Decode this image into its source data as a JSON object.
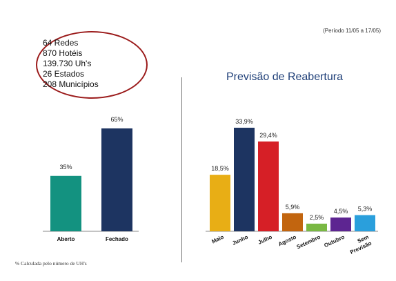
{
  "period_note": "(Período 11/05 a 17/05)",
  "stats": [
    "64 Redes",
    "870 Hotéis",
    "139.730 Uh's",
    "26 Estados",
    "208 Municípios"
  ],
  "footnote": "% Calculada pelo número de UH's",
  "chart_data": [
    {
      "type": "bar",
      "title": "",
      "categories": [
        "Aberto",
        "Fechado"
      ],
      "values": [
        35,
        65
      ],
      "value_labels": [
        "35%",
        "65%"
      ],
      "colors": [
        "#139280",
        "#1d3461"
      ],
      "ylim": [
        0,
        70
      ],
      "grid": false,
      "legend": "none"
    },
    {
      "type": "bar",
      "title": "Previsão de Reabertura",
      "categories": [
        "Maio",
        "Junho",
        "Julho",
        "Agosto",
        "Setembro",
        "Outubro",
        "Sem Previsão"
      ],
      "category_lines": [
        [
          "Maio"
        ],
        [
          "Junho"
        ],
        [
          "Julho"
        ],
        [
          "Agosto"
        ],
        [
          "Setembro"
        ],
        [
          "Outubro"
        ],
        [
          "Sem",
          "Previsão"
        ]
      ],
      "values": [
        18.5,
        33.9,
        29.4,
        5.9,
        2.5,
        4.5,
        5.3
      ],
      "value_labels": [
        "18,5%",
        "33,9%",
        "29,4%",
        "5,9%",
        "2,5%",
        "4,5%",
        "5,3%"
      ],
      "colors": [
        "#e8ae15",
        "#1d3461",
        "#d61f26",
        "#c2650f",
        "#79b843",
        "#5d2591",
        "#2a9fdc"
      ],
      "ylim": [
        0,
        35
      ],
      "grid": false,
      "legend": "none"
    }
  ]
}
